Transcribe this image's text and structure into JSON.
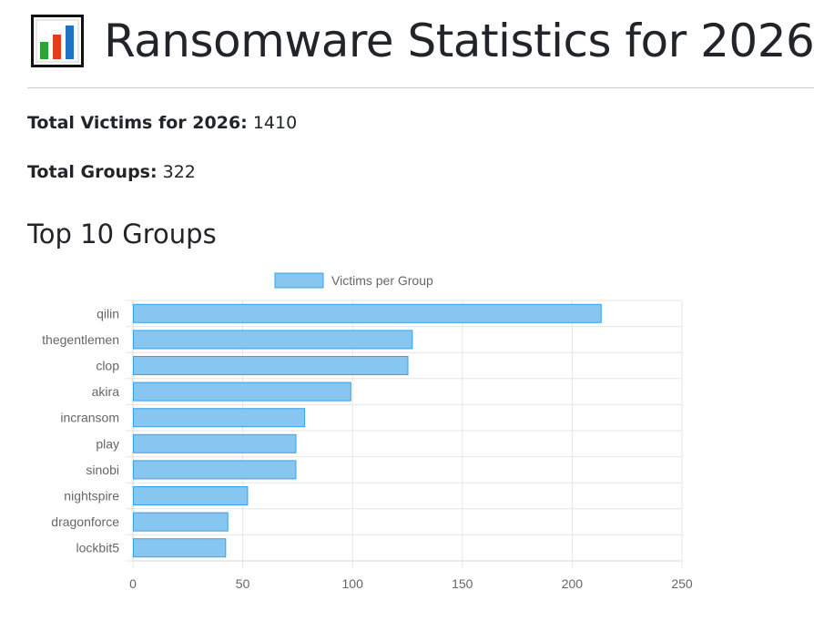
{
  "page": {
    "title": "Ransomware Statistics for 2026",
    "title_icon": "bar-chart-icon"
  },
  "stats": {
    "victims_label": "Total Victims for 2026:",
    "victims_value": "1410",
    "groups_label": "Total Groups:",
    "groups_value": "322"
  },
  "section": {
    "title": "Top 10 Groups"
  },
  "chart_data": {
    "type": "bar",
    "orientation": "horizontal",
    "categories": [
      "qilin",
      "thegentlemen",
      "clop",
      "akira",
      "incransom",
      "play",
      "sinobi",
      "nightspire",
      "dragonforce",
      "lockbit5"
    ],
    "series": [
      {
        "name": "Victims per Group",
        "values": [
          213,
          127,
          125,
          99,
          78,
          74,
          74,
          52,
          43,
          42
        ]
      }
    ],
    "xlim": [
      0,
      250
    ],
    "x_ticks": [
      "0",
      "50",
      "100",
      "150",
      "200",
      "250"
    ],
    "grid": true,
    "legend": "top-center",
    "colors": {
      "bar_fill": "#88c6f2",
      "bar_border": "#36a2eb"
    }
  }
}
